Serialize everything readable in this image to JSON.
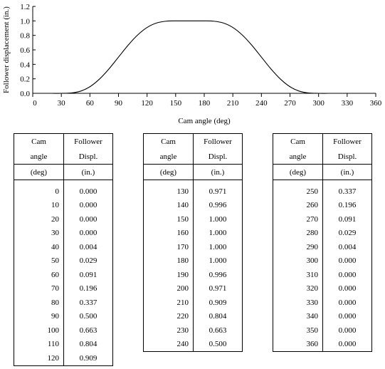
{
  "chart_data": {
    "type": "line",
    "xlabel": "Cam angle (deg)",
    "ylabel": "Follower displacement (in.)",
    "xlim": [
      0,
      360
    ],
    "ylim": [
      0,
      1.2
    ],
    "xticks": [
      "0",
      "30",
      "60",
      "90",
      "120",
      "150",
      "180",
      "210",
      "240",
      "270",
      "300",
      "330",
      "360"
    ],
    "yticks": [
      "0.0",
      "0.2",
      "0.4",
      "0.6",
      "0.8",
      "1.0",
      "1.2"
    ],
    "grid": false,
    "series": [
      {
        "x": [
          0,
          10,
          20,
          30,
          40,
          50,
          60,
          70,
          80,
          90,
          100,
          110,
          120,
          130,
          140,
          150,
          160,
          170,
          180,
          190,
          200,
          210,
          220,
          230,
          240,
          250,
          260,
          270,
          280,
          290,
          300,
          310,
          320,
          330,
          340,
          350,
          360
        ],
        "values": [
          0.0,
          0.0,
          0.0,
          0.0,
          0.004,
          0.029,
          0.091,
          0.196,
          0.337,
          0.5,
          0.663,
          0.804,
          0.909,
          0.971,
          0.996,
          1.0,
          1.0,
          1.0,
          1.0,
          0.996,
          0.971,
          0.909,
          0.804,
          0.663,
          0.5,
          0.337,
          0.196,
          0.091,
          0.029,
          0.004,
          0.0,
          0.0,
          0.0,
          0.0,
          0.0,
          0.0,
          0.0
        ]
      }
    ]
  },
  "tables": [
    {
      "header": {
        "c1_l1": "Cam",
        "c1_l2": "angle",
        "c2_l1": "Follower",
        "c2_l2": "Displ.",
        "c1_unit": "(deg)",
        "c2_unit": "(in.)"
      },
      "rows": [
        [
          "0",
          "0.000"
        ],
        [
          "10",
          "0.000"
        ],
        [
          "20",
          "0.000"
        ],
        [
          "30",
          "0.000"
        ],
        [
          "40",
          "0.004"
        ],
        [
          "50",
          "0.029"
        ],
        [
          "60",
          "0.091"
        ],
        [
          "70",
          "0.196"
        ],
        [
          "80",
          "0.337"
        ],
        [
          "90",
          "0.500"
        ],
        [
          "100",
          "0.663"
        ],
        [
          "110",
          "0.804"
        ],
        [
          "120",
          "0.909"
        ]
      ]
    },
    {
      "header": {
        "c1_l1": "Cam",
        "c1_l2": "angle",
        "c2_l1": "Follower",
        "c2_l2": "Displ.",
        "c1_unit": "(deg)",
        "c2_unit": "(in.)"
      },
      "rows": [
        [
          "130",
          "0.971"
        ],
        [
          "140",
          "0.996"
        ],
        [
          "150",
          "1.000"
        ],
        [
          "160",
          "1.000"
        ],
        [
          "170",
          "1.000"
        ],
        [
          "180",
          "1.000"
        ],
        [
          "190",
          "0.996"
        ],
        [
          "200",
          "0.971"
        ],
        [
          "210",
          "0.909"
        ],
        [
          "220",
          "0.804"
        ],
        [
          "230",
          "0.663"
        ],
        [
          "240",
          "0.500"
        ]
      ]
    },
    {
      "header": {
        "c1_l1": "Cam",
        "c1_l2": "angle",
        "c2_l1": "Follower",
        "c2_l2": "Displ.",
        "c1_unit": "(deg)",
        "c2_unit": "(in.)"
      },
      "rows": [
        [
          "250",
          "0.337"
        ],
        [
          "260",
          "0.196"
        ],
        [
          "270",
          "0.091"
        ],
        [
          "280",
          "0.029"
        ],
        [
          "290",
          "0.004"
        ],
        [
          "300",
          "0.000"
        ],
        [
          "310",
          "0.000"
        ],
        [
          "320",
          "0.000"
        ],
        [
          "330",
          "0.000"
        ],
        [
          "340",
          "0.000"
        ],
        [
          "350",
          "0.000"
        ],
        [
          "360",
          "0.000"
        ]
      ]
    }
  ]
}
